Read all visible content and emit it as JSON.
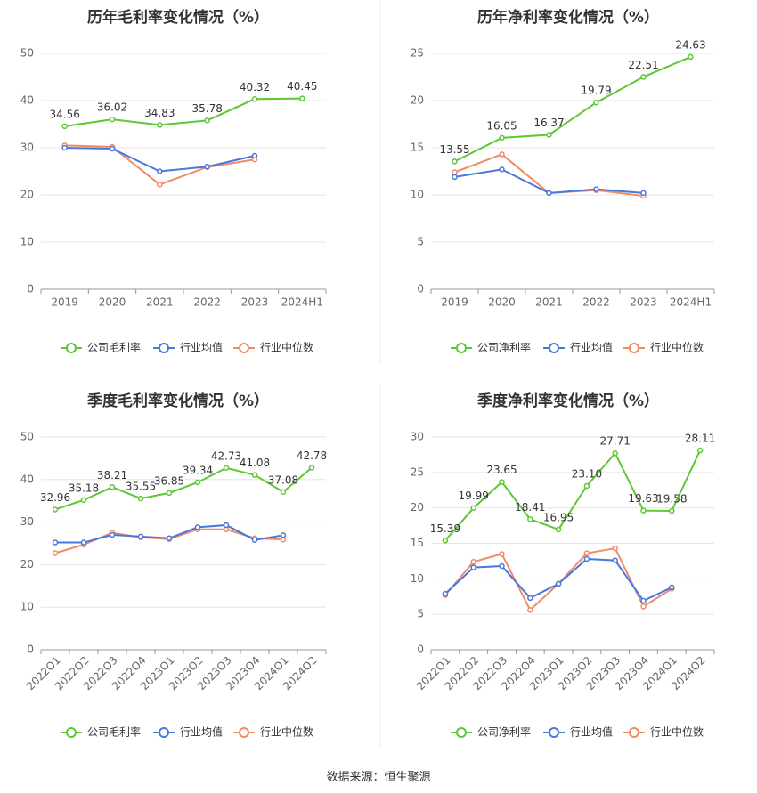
{
  "source": "数据来源：恒生聚源",
  "colors": {
    "company": "#5cc832",
    "industry_avg": "#4877dd",
    "industry_median": "#f08b66"
  },
  "chart_data": [
    {
      "type": "line",
      "title": "历年毛利率变化情况（%）",
      "categories": [
        "2019",
        "2020",
        "2021",
        "2022",
        "2023",
        "2024H1"
      ],
      "ylim": [
        0,
        50
      ],
      "yticks": [
        0,
        10,
        20,
        30,
        40,
        50
      ],
      "grid": true,
      "legend": "bottom",
      "series": [
        {
          "name": "公司毛利率",
          "values": [
            34.56,
            36.02,
            34.83,
            35.78,
            40.32,
            40.45
          ],
          "labels": [
            "34.56",
            "36.02",
            "34.83",
            "35.78",
            "40.32",
            "40.45"
          ]
        },
        {
          "name": "行业均值",
          "values": [
            30.0,
            29.8,
            25.0,
            26.0,
            28.3,
            null
          ]
        },
        {
          "name": "行业中位数",
          "values": [
            30.5,
            30.2,
            22.2,
            25.9,
            27.5,
            null
          ]
        }
      ]
    },
    {
      "type": "line",
      "title": "历年净利率变化情况（%）",
      "categories": [
        "2019",
        "2020",
        "2021",
        "2022",
        "2023",
        "2024H1"
      ],
      "ylim": [
        0,
        25
      ],
      "yticks": [
        0,
        5,
        10,
        15,
        20,
        25
      ],
      "grid": true,
      "legend": "bottom",
      "series": [
        {
          "name": "公司净利率",
          "values": [
            13.55,
            16.05,
            16.37,
            19.79,
            22.51,
            24.63
          ],
          "labels": [
            "13.55",
            "16.05",
            "16.37",
            "19.79",
            "22.51",
            "24.63"
          ]
        },
        {
          "name": "行业均值",
          "values": [
            11.9,
            12.7,
            10.2,
            10.6,
            10.2,
            null
          ]
        },
        {
          "name": "行业中位数",
          "values": [
            12.4,
            14.3,
            10.2,
            10.5,
            9.9,
            null
          ]
        }
      ]
    },
    {
      "type": "line",
      "title": "季度毛利率变化情况（%）",
      "categories": [
        "2022Q1",
        "2022Q2",
        "2022Q3",
        "2022Q4",
        "2023Q1",
        "2023Q2",
        "2023Q3",
        "2023Q4",
        "2024Q1",
        "2024Q2"
      ],
      "ylim": [
        0,
        50
      ],
      "yticks": [
        0,
        10,
        20,
        30,
        40,
        50
      ],
      "grid": true,
      "legend": "bottom",
      "series": [
        {
          "name": "公司毛利率",
          "values": [
            32.96,
            35.18,
            38.21,
            35.55,
            36.85,
            39.34,
            42.73,
            41.08,
            37.08,
            42.78
          ],
          "labels": [
            "32.96",
            "35.18",
            "38.21",
            "35.55",
            "36.85",
            "39.34",
            "42.73",
            "41.08",
            "37.08",
            "42.78"
          ]
        },
        {
          "name": "行业均值",
          "values": [
            25.2,
            25.2,
            27.0,
            26.6,
            26.2,
            28.8,
            29.3,
            25.8,
            26.9,
            null
          ]
        },
        {
          "name": "行业中位数",
          "values": [
            22.7,
            24.7,
            27.5,
            26.4,
            26.0,
            28.3,
            28.3,
            26.2,
            25.9,
            null
          ]
        }
      ]
    },
    {
      "type": "line",
      "title": "季度净利率变化情况（%）",
      "categories": [
        "2022Q1",
        "2022Q2",
        "2022Q3",
        "2022Q4",
        "2023Q1",
        "2023Q2",
        "2023Q3",
        "2023Q4",
        "2024Q1",
        "2024Q2"
      ],
      "ylim": [
        0,
        30
      ],
      "yticks": [
        0,
        5,
        10,
        15,
        20,
        25,
        30
      ],
      "grid": true,
      "legend": "bottom",
      "series": [
        {
          "name": "公司净利率",
          "values": [
            15.39,
            19.99,
            23.65,
            18.41,
            16.95,
            23.1,
            27.71,
            19.63,
            19.58,
            28.11
          ],
          "labels": [
            "15.39",
            "19.99",
            "23.65",
            "18.41",
            "16.95",
            "23.10",
            "27.71",
            "19.63",
            "19.58",
            "28.11"
          ]
        },
        {
          "name": "行业均值",
          "values": [
            7.9,
            11.6,
            11.8,
            7.3,
            9.3,
            12.8,
            12.6,
            6.9,
            8.8,
            null
          ]
        },
        {
          "name": "行业中位数",
          "values": [
            7.7,
            12.4,
            13.5,
            5.6,
            9.3,
            13.6,
            14.3,
            6.1,
            8.6,
            null
          ]
        }
      ]
    }
  ]
}
